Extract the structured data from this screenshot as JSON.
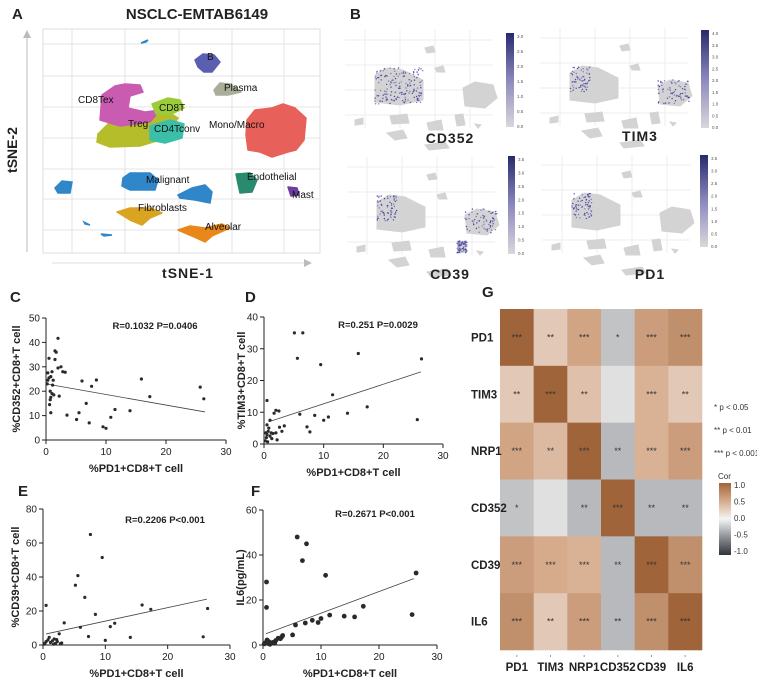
{
  "panel_labels": [
    "A",
    "B",
    "C",
    "D",
    "E",
    "F",
    "G"
  ],
  "colors": {
    "axis": "#222222",
    "point": "#333333",
    "grid": "#dddddd",
    "expr_low": "#d3d3d3",
    "expr_high": "#2b2f7a"
  },
  "chart_data": [
    {
      "id": "A",
      "type": "scatter",
      "title": "NSCLC-EMTAB6149",
      "xlabel": "tSNE-1",
      "ylabel": "tSNE-2",
      "grid": true,
      "clusters": [
        {
          "name": "CD8Tex",
          "color": "#c95bb0"
        },
        {
          "name": "CD8T",
          "color": "#9ccc3a"
        },
        {
          "name": "Treg",
          "color": "#b5bd2a"
        },
        {
          "name": "CD4Tconv",
          "color": "#3cbfa8"
        },
        {
          "name": "Mono/Macro",
          "color": "#e8605a"
        },
        {
          "name": "B",
          "color": "#5b5fb0"
        },
        {
          "name": "Plasma",
          "color": "#a9ae98"
        },
        {
          "name": "Malignant",
          "color": "#2f86c8"
        },
        {
          "name": "Endothelial",
          "color": "#2a8a6e"
        },
        {
          "name": "Mast",
          "color": "#6a3fa0"
        },
        {
          "name": "Fibroblasts",
          "color": "#d9a520"
        },
        {
          "name": "Alveolar",
          "color": "#e8871a"
        }
      ]
    },
    {
      "id": "B",
      "type": "scatter",
      "features": [
        {
          "name": "CD352",
          "colorbar_ticks": [
            "0.0",
            "0.5",
            "1.0",
            "1.5",
            "2.0",
            "2.5",
            "3.0"
          ]
        },
        {
          "name": "TIM3",
          "colorbar_ticks": [
            "0.0",
            "0.5",
            "1.0",
            "1.5",
            "2.0",
            "2.5",
            "3.0",
            "3.5",
            "4.0"
          ]
        },
        {
          "name": "CD39",
          "colorbar_ticks": [
            "0.0",
            "0.5",
            "1.0",
            "1.5",
            "2.0",
            "2.5",
            "3.0",
            "3.5"
          ]
        },
        {
          "name": "PD1",
          "colorbar_ticks": [
            "0.0",
            "0.5",
            "1.0",
            "1.5",
            "2.0",
            "2.5",
            "3.0",
            "3.5"
          ]
        }
      ]
    },
    {
      "id": "C",
      "type": "scatter",
      "stat": "R=0.1032  P=0.0406",
      "xlabel": "%PD1+CD8+T cell",
      "ylabel": "%CD352+CD8+T cell",
      "xlim": [
        0,
        30
      ],
      "ylim": [
        0,
        50
      ],
      "xticks": [
        0,
        10,
        20,
        30
      ],
      "yticks": [
        0,
        10,
        20,
        30,
        40,
        50
      ],
      "fit": [
        [
          0,
          23
        ],
        [
          26.5,
          11.5
        ]
      ],
      "points": [
        [
          0.3,
          27.5
        ],
        [
          0.5,
          33.5
        ],
        [
          0.3,
          24.5
        ],
        [
          0.5,
          25.5
        ],
        [
          0.8,
          26
        ],
        [
          1,
          28
        ],
        [
          1.2,
          24.5
        ],
        [
          0.7,
          20
        ],
        [
          1,
          19
        ],
        [
          0.8,
          17.5
        ],
        [
          0.7,
          16.5
        ],
        [
          0.6,
          14.5
        ],
        [
          0.8,
          11.2
        ],
        [
          1.1,
          22.5
        ],
        [
          1.5,
          36.5
        ],
        [
          1.7,
          36
        ],
        [
          1.5,
          33
        ],
        [
          2,
          41.7
        ],
        [
          2,
          29.5
        ],
        [
          2.5,
          30
        ],
        [
          2.8,
          28
        ],
        [
          3.2,
          27.8
        ],
        [
          2.2,
          18
        ],
        [
          3.5,
          10.2
        ],
        [
          5.1,
          8.4
        ],
        [
          5.5,
          11.2
        ],
        [
          6,
          24.2
        ],
        [
          6.7,
          15
        ],
        [
          7.2,
          7
        ],
        [
          7.6,
          22
        ],
        [
          8.4,
          24.6
        ],
        [
          9.5,
          5.4
        ],
        [
          10,
          4.8
        ],
        [
          10.8,
          9.3
        ],
        [
          11.5,
          12.5
        ],
        [
          14,
          12
        ],
        [
          15.9,
          25
        ],
        [
          17.3,
          17.8
        ],
        [
          25.7,
          21.7
        ],
        [
          26.3,
          16.9
        ],
        [
          0.2,
          23
        ],
        [
          1.3,
          18.5
        ]
      ]
    },
    {
      "id": "D",
      "type": "scatter",
      "stat": "R=0.251   P=0.0029",
      "xlabel": "%PD1+CD8+T cell",
      "ylabel": "%TIM3+CD8+T cell",
      "xlim": [
        0,
        30
      ],
      "ylim": [
        0,
        40
      ],
      "xticks": [
        0,
        10,
        20,
        30
      ],
      "yticks": [
        0,
        10,
        20,
        30,
        40
      ],
      "fit": [
        [
          0.8,
          7
        ],
        [
          26.3,
          22.7
        ]
      ],
      "points": [
        [
          5.1,
          35
        ],
        [
          6.5,
          35
        ],
        [
          5.6,
          27
        ],
        [
          9.5,
          25
        ],
        [
          15.8,
          28.5
        ],
        [
          26.4,
          26.8
        ],
        [
          11.5,
          15.5
        ],
        [
          17.3,
          11.7
        ],
        [
          14,
          9.7
        ],
        [
          25.7,
          7.7
        ],
        [
          6,
          9.4
        ],
        [
          8.5,
          9
        ],
        [
          10,
          7.5
        ],
        [
          10.8,
          8.5
        ],
        [
          7.2,
          5.4
        ],
        [
          7.7,
          3.8
        ],
        [
          0.5,
          13.7
        ],
        [
          1.7,
          9.7
        ],
        [
          2,
          10.6
        ],
        [
          2.5,
          10.4
        ],
        [
          1,
          7.5
        ],
        [
          0.5,
          6
        ],
        [
          0.8,
          5
        ],
        [
          0.3,
          3.5
        ],
        [
          0.5,
          3
        ],
        [
          0.7,
          4
        ],
        [
          1,
          2.5
        ],
        [
          1.2,
          3.5
        ],
        [
          0.2,
          1
        ],
        [
          0.4,
          2
        ],
        [
          1.5,
          3.3
        ],
        [
          2,
          3.5
        ],
        [
          2.6,
          5.3
        ],
        [
          3,
          4
        ],
        [
          3.4,
          5.7
        ],
        [
          2.2,
          1.3
        ],
        [
          1.3,
          1.7
        ],
        [
          0.6,
          0.7
        ]
      ]
    },
    {
      "id": "E",
      "type": "scatter",
      "stat": "R=0.2206   P<0.001",
      "xlabel": "%PD1+CD8+T cell",
      "ylabel": "%CD39+CD8+T cell",
      "xlim": [
        0,
        30
      ],
      "ylim": [
        0,
        80
      ],
      "xticks": [
        0,
        10,
        20,
        30
      ],
      "yticks": [
        0,
        20,
        40,
        60,
        80
      ],
      "fit": [
        [
          0.5,
          6.5
        ],
        [
          26.3,
          27
        ]
      ],
      "points": [
        [
          7.6,
          65
        ],
        [
          9.5,
          51.5
        ],
        [
          5.6,
          40.8
        ],
        [
          5.2,
          35.2
        ],
        [
          6.7,
          28
        ],
        [
          8.4,
          18
        ],
        [
          3.4,
          13
        ],
        [
          6,
          10.4
        ],
        [
          11.5,
          12.8
        ],
        [
          10.8,
          10.8
        ],
        [
          15.9,
          23.5
        ],
        [
          17.3,
          21
        ],
        [
          26.4,
          21.5
        ],
        [
          0.5,
          23.3
        ],
        [
          7.3,
          5
        ],
        [
          10,
          2.7
        ],
        [
          14,
          4.5
        ],
        [
          25.7,
          4.8
        ],
        [
          2.6,
          6.6
        ],
        [
          1,
          4.5
        ],
        [
          0.5,
          2
        ],
        [
          0.3,
          1
        ],
        [
          0.8,
          3
        ],
        [
          1.2,
          1.5
        ],
        [
          1.5,
          2.5
        ],
        [
          1.8,
          3.5
        ],
        [
          2,
          1
        ],
        [
          2.3,
          2
        ],
        [
          2.8,
          0.8
        ],
        [
          3,
          1.2
        ],
        [
          0.2,
          0.5
        ],
        [
          1.7,
          0.5
        ],
        [
          2.2,
          3.2
        ]
      ]
    },
    {
      "id": "F",
      "type": "scatter",
      "stat": "R=0.2671  P<0.001",
      "xlabel": "%PD1+CD8+T cell",
      "ylabel": "IL6(pg/mL)",
      "xlim": [
        0,
        30
      ],
      "ylim": [
        0,
        60
      ],
      "xticks": [
        0,
        10,
        20,
        30
      ],
      "yticks": [
        0,
        20,
        40,
        60
      ],
      "fit": [
        [
          0.5,
          5
        ],
        [
          26,
          29.5
        ]
      ],
      "points": [
        [
          5.9,
          48
        ],
        [
          7.5,
          45
        ],
        [
          6.8,
          37.5
        ],
        [
          10.8,
          31
        ],
        [
          26.4,
          32
        ],
        [
          0.6,
          28
        ],
        [
          0.6,
          16.7
        ],
        [
          17.3,
          17.2
        ],
        [
          11.5,
          13.3
        ],
        [
          14,
          12.8
        ],
        [
          15.8,
          12.5
        ],
        [
          25.7,
          13.5
        ],
        [
          10,
          11.8
        ],
        [
          9.5,
          10
        ],
        [
          8.5,
          11
        ],
        [
          7.3,
          9.8
        ],
        [
          5.6,
          8.9
        ],
        [
          5.1,
          4.5
        ],
        [
          3.4,
          4.2
        ],
        [
          3,
          2.8
        ],
        [
          2.6,
          3
        ],
        [
          2.2,
          2
        ],
        [
          1.8,
          1.2
        ],
        [
          1.4,
          1
        ],
        [
          1,
          1.5
        ],
        [
          0.7,
          2.2
        ],
        [
          0.4,
          1
        ],
        [
          0.2,
          0.5
        ],
        [
          1.2,
          0.3
        ],
        [
          2,
          0.8
        ],
        [
          0.9,
          0.6
        ],
        [
          3.2,
          3.5
        ]
      ]
    },
    {
      "id": "G",
      "type": "heatmap",
      "rows": [
        "PD1",
        "TIM3",
        "NRP1",
        "CD352",
        "CD39",
        "IL6"
      ],
      "cols": [
        "PD1",
        "TIM3",
        "NRP1",
        "CD352",
        "CD39",
        "IL6"
      ],
      "values": [
        [
          1.0,
          0.3,
          0.55,
          -0.25,
          0.6,
          0.7
        ],
        [
          0.3,
          1.0,
          0.35,
          -0.1,
          0.45,
          0.3
        ],
        [
          0.55,
          0.4,
          1.0,
          -0.3,
          0.45,
          0.6
        ],
        [
          -0.25,
          -0.1,
          -0.3,
          1.0,
          -0.3,
          -0.3
        ],
        [
          0.6,
          0.5,
          0.45,
          -0.3,
          1.0,
          0.7
        ],
        [
          0.7,
          0.3,
          0.6,
          -0.3,
          0.7,
          1.0
        ]
      ],
      "stars": [
        [
          "***",
          "**",
          "***",
          "*",
          "***",
          "***"
        ],
        [
          "**",
          "***",
          "**",
          "",
          "***",
          "**"
        ],
        [
          "***",
          "**",
          "***",
          "**",
          "***",
          "***"
        ],
        [
          "*",
          "",
          "**",
          "***",
          "**",
          "**"
        ],
        [
          "***",
          "***",
          "***",
          "**",
          "***",
          "***"
        ],
        [
          "***",
          "**",
          "***",
          "**",
          "***",
          "***"
        ]
      ],
      "significance_legend": [
        "* p < 0.05",
        "** p < 0.01",
        "*** p < 0.001"
      ],
      "colorbar_title": "Cor",
      "colorbar_ticks": [
        "1.0",
        "0.5",
        "0.0",
        "-0.5",
        "-1.0"
      ],
      "color_stops": [
        [
          "-1",
          "#30343b"
        ],
        [
          "-0.5",
          "#8e9296"
        ],
        [
          "0",
          "#f4f4f4"
        ],
        [
          "0.5",
          "#d6ab8c"
        ],
        [
          "1",
          "#a0643a"
        ]
      ]
    }
  ]
}
